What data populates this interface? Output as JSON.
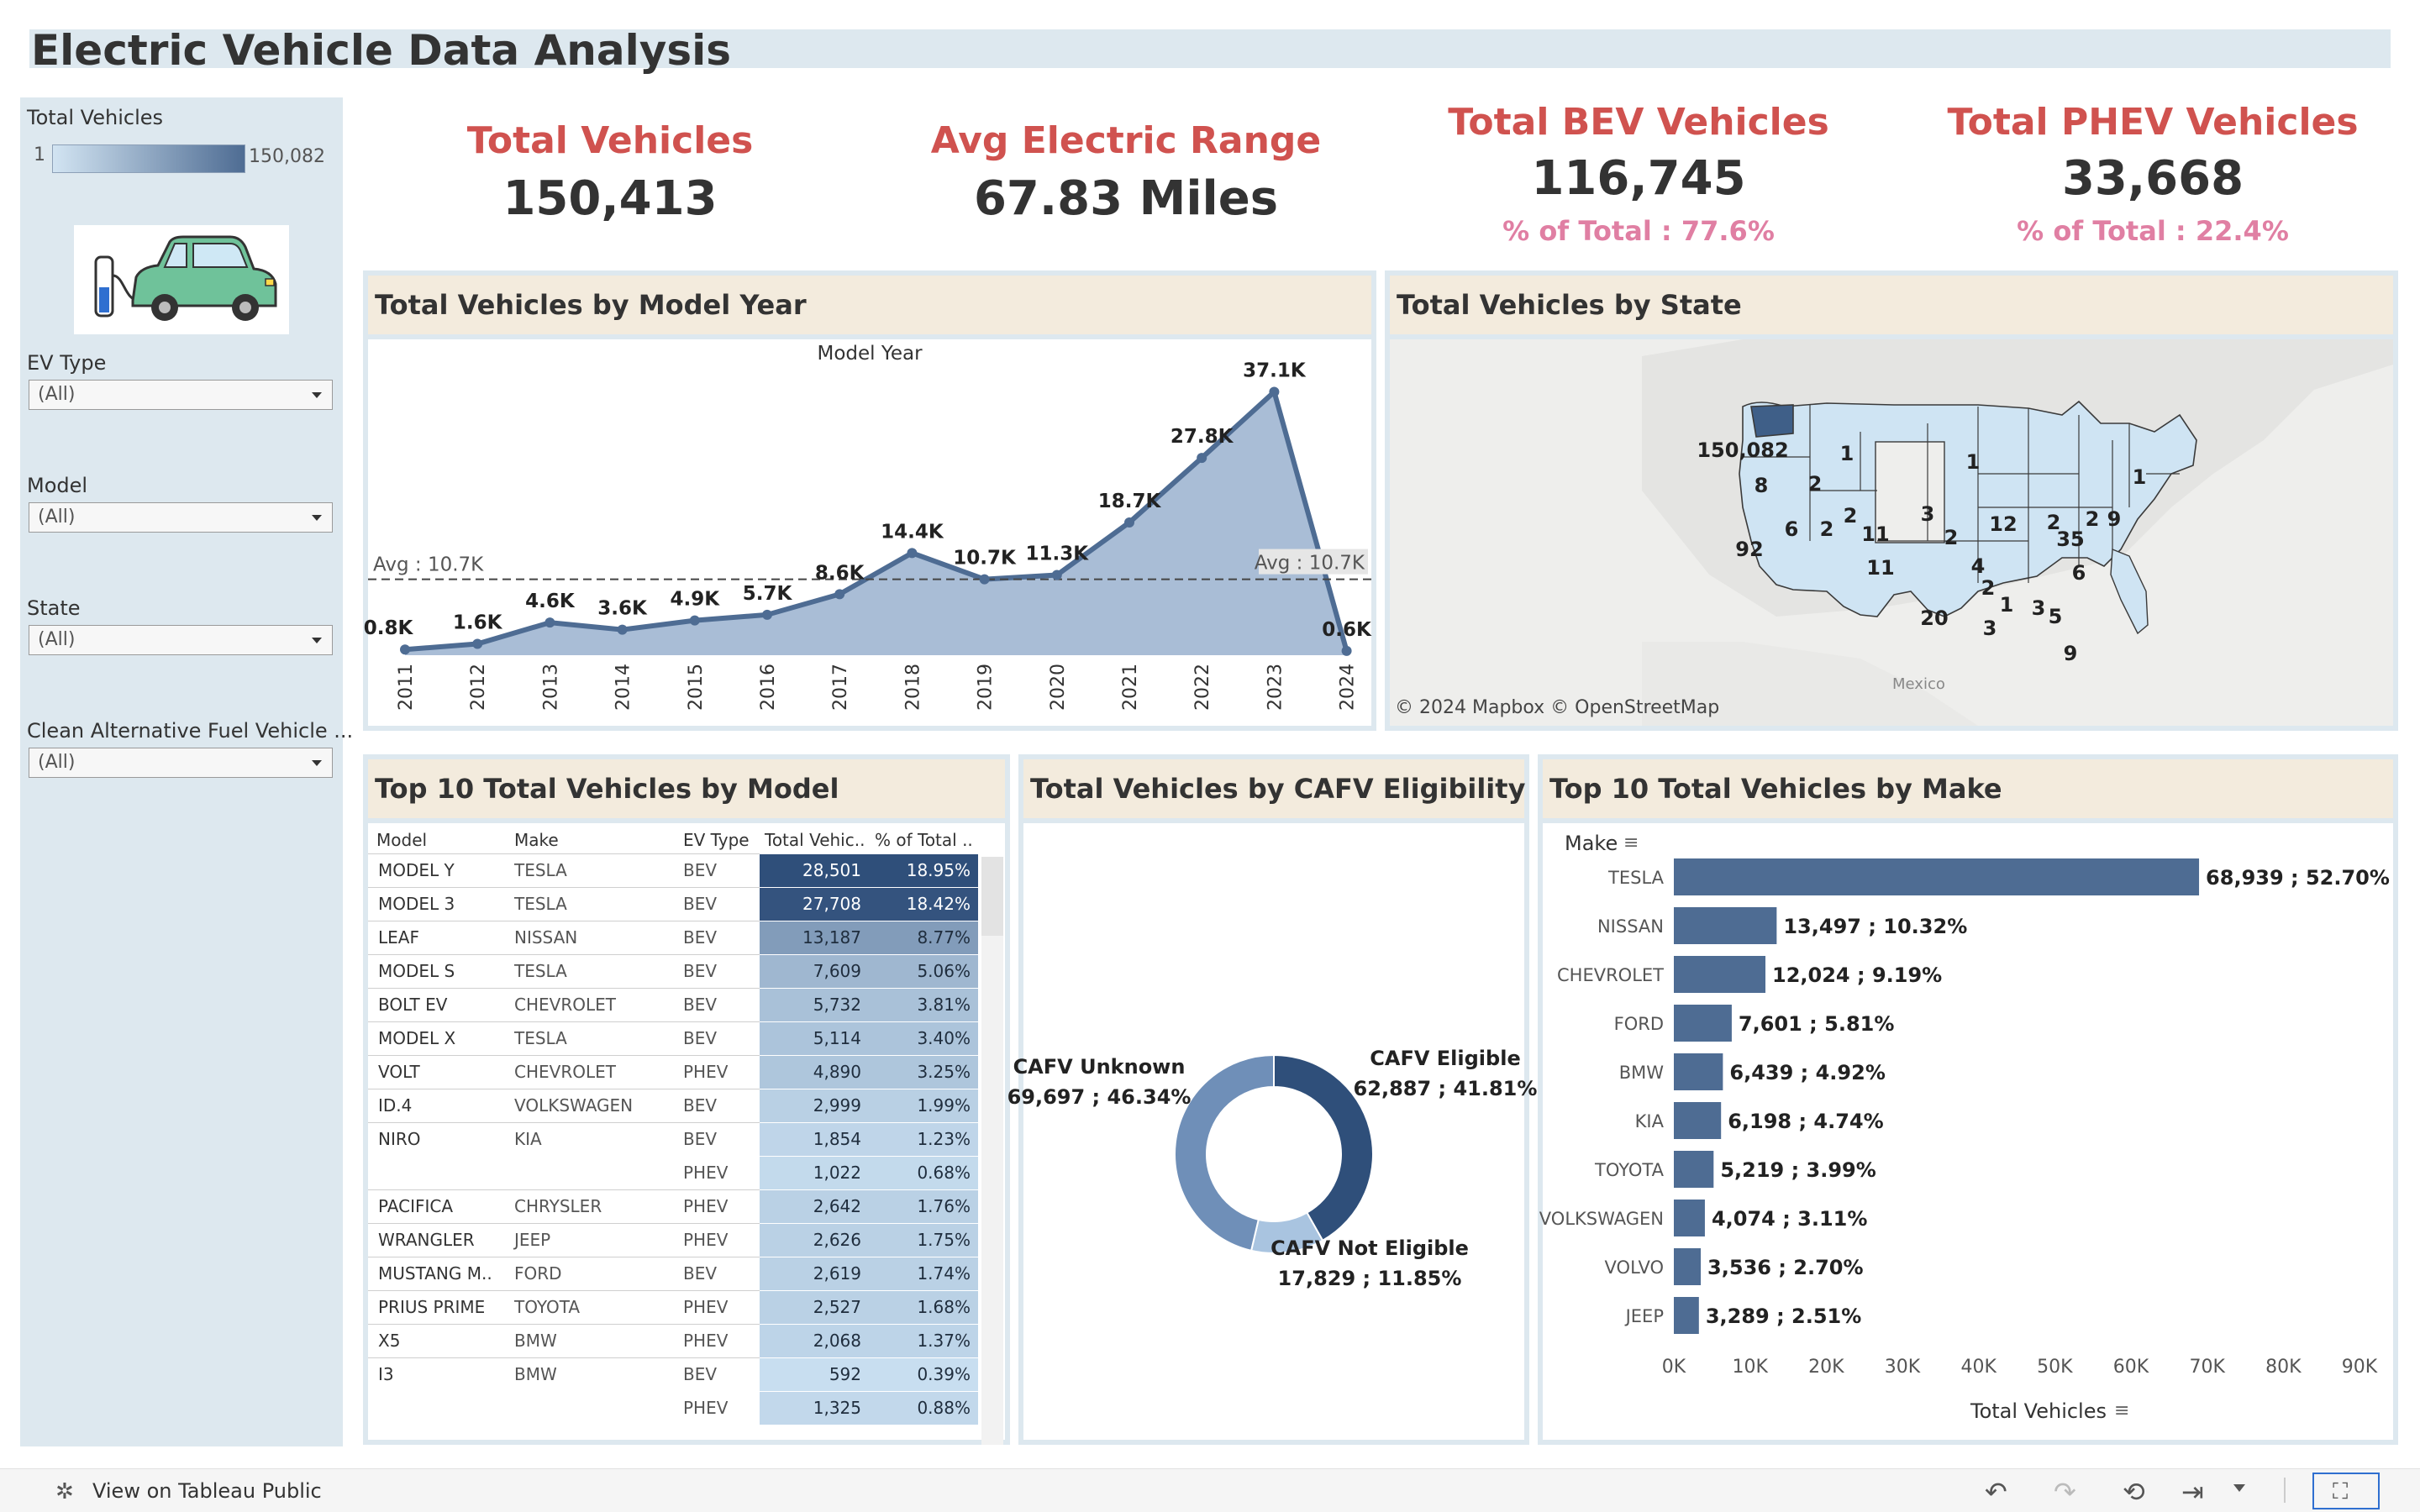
{
  "title": "Electric Vehicle Data Analysis",
  "sidebar": {
    "legend_title": "Total Vehicles",
    "legend_min": "1",
    "legend_max": "150,082",
    "filters": [
      {
        "label": "EV Type",
        "value": "(All)"
      },
      {
        "label": "Model",
        "value": "(All)"
      },
      {
        "label": "State",
        "value": "(All)"
      },
      {
        "label": "Clean Alternative Fuel Vehicle ...",
        "value": "(All)"
      }
    ]
  },
  "kpis": [
    {
      "title": "Total Vehicles",
      "value": "150,413",
      "sub": ""
    },
    {
      "title": "Avg Electric Range",
      "value": "67.83 Miles",
      "sub": ""
    },
    {
      "title": "Total BEV Vehicles",
      "value": "116,745",
      "sub": "% of Total : 77.6%"
    },
    {
      "title": "Total PHEV Vehicles",
      "value": "33,668",
      "sub": "% of Total : 22.4%"
    }
  ],
  "panels": {
    "model_year": "Total Vehicles by Model Year",
    "state": "Total Vehicles by State",
    "top_models": "Top 10 Total Vehicles by Model",
    "cafv": "Total Vehicles by CAFV Eligibility",
    "top_makes": "Top 10 Total Vehicles by Make"
  },
  "map": {
    "attribution": "© 2024 Mapbox  © OpenStreetMap",
    "mexico_label": "Mexico",
    "state_labels": [
      "150,082",
      "1",
      "8",
      "2",
      "2",
      "1",
      "6",
      "2",
      "11",
      "3",
      "2",
      "12",
      "2",
      "2",
      "9",
      "1",
      "92",
      "11",
      "35",
      "4",
      "6",
      "2",
      "1",
      "3",
      "5",
      "20",
      "3",
      "9"
    ]
  },
  "table": {
    "headers": [
      "Model",
      "Make",
      "EV Type",
      "Total Vehic..",
      "% of Total .."
    ],
    "rows": [
      {
        "model": "MODEL Y",
        "make": "TESLA",
        "type": "BEV",
        "total": "28,501",
        "pct": "18.95%",
        "shade": 1.0
      },
      {
        "model": "MODEL 3",
        "make": "TESLA",
        "type": "BEV",
        "total": "27,708",
        "pct": "18.42%",
        "shade": 0.97
      },
      {
        "model": "LEAF",
        "make": "NISSAN",
        "type": "BEV",
        "total": "13,187",
        "pct": "8.77%",
        "shade": 0.46
      },
      {
        "model": "MODEL S",
        "make": "TESLA",
        "type": "BEV",
        "total": "7,609",
        "pct": "5.06%",
        "shade": 0.27
      },
      {
        "model": "BOLT EV",
        "make": "CHEVROLET",
        "type": "BEV",
        "total": "5,732",
        "pct": "3.81%",
        "shade": 0.2
      },
      {
        "model": "MODEL X",
        "make": "TESLA",
        "type": "BEV",
        "total": "5,114",
        "pct": "3.40%",
        "shade": 0.18
      },
      {
        "model": "VOLT",
        "make": "CHEVROLET",
        "type": "PHEV",
        "total": "4,890",
        "pct": "3.25%",
        "shade": 0.17
      },
      {
        "model": "ID.4",
        "make": "VOLKSWAGEN",
        "type": "BEV",
        "total": "2,999",
        "pct": "1.99%",
        "shade": 0.1
      },
      {
        "model": "NIRO",
        "make": "KIA",
        "type": "BEV",
        "total": "1,854",
        "pct": "1.23%",
        "shade": 0.06
      },
      {
        "model": "",
        "make": "",
        "type": "PHEV",
        "total": "1,022",
        "pct": "0.68%",
        "shade": 0.03
      },
      {
        "model": "PACIFICA",
        "make": "CHRYSLER",
        "type": "PHEV",
        "total": "2,642",
        "pct": "1.76%",
        "shade": 0.09
      },
      {
        "model": "WRANGLER",
        "make": "JEEP",
        "type": "PHEV",
        "total": "2,626",
        "pct": "1.75%",
        "shade": 0.09
      },
      {
        "model": "MUSTANG M..",
        "make": "FORD",
        "type": "BEV",
        "total": "2,619",
        "pct": "1.74%",
        "shade": 0.09
      },
      {
        "model": "PRIUS PRIME",
        "make": "TOYOTA",
        "type": "PHEV",
        "total": "2,527",
        "pct": "1.68%",
        "shade": 0.09
      },
      {
        "model": "X5",
        "make": "BMW",
        "type": "PHEV",
        "total": "2,068",
        "pct": "1.37%",
        "shade": 0.07
      },
      {
        "model": "I3",
        "make": "BMW",
        "type": "BEV",
        "total": "592",
        "pct": "0.39%",
        "shade": 0.0
      },
      {
        "model": "",
        "make": "",
        "type": "PHEV",
        "total": "1,325",
        "pct": "0.88%",
        "shade": 0.04
      }
    ]
  },
  "footer": {
    "link": "View on Tableau Public"
  },
  "chart_data": [
    {
      "type": "area",
      "title": "Total Vehicles by Model Year",
      "xlabel": "Model Year",
      "x": [
        "2011",
        "2012",
        "2013",
        "2014",
        "2015",
        "2016",
        "2017",
        "2018",
        "2019",
        "2020",
        "2021",
        "2022",
        "2023",
        "2024"
      ],
      "values": [
        0.8,
        1.6,
        4.6,
        3.6,
        4.9,
        5.7,
        8.6,
        14.4,
        10.7,
        11.3,
        18.7,
        27.8,
        37.1,
        0.6
      ],
      "value_labels": [
        "0.8K",
        "1.6K",
        "4.6K",
        "3.6K",
        "4.9K",
        "5.7K",
        "8.6K",
        "14.4K",
        "10.7K",
        "11.3K",
        "18.7K",
        "27.8K",
        "37.1K",
        "0.6K"
      ],
      "avg": 10.7,
      "avg_label": "Avg : 10.7K",
      "ylim": [
        0,
        40
      ],
      "colors": {
        "fill": "#a9bdd6",
        "line": "#4e6c93"
      }
    },
    {
      "type": "pie",
      "title": "Total Vehicles by CAFV Eligibility",
      "slices": [
        {
          "name": "CAFV Eligible",
          "value": 62887,
          "label": "62,887 ; 41.81%",
          "color": "#2f4f7a"
        },
        {
          "name": "CAFV Not Eligible",
          "value": 17829,
          "label": "17,829 ; 11.85%",
          "color": "#a9c4e0"
        },
        {
          "name": "CAFV Unknown",
          "value": 69697,
          "label": "69,697 ; 46.34%",
          "color": "#6f8fb8"
        }
      ]
    },
    {
      "type": "bar",
      "title": "Top 10 Total Vehicles by Make",
      "ylabel": "Make",
      "xlabel": "Total Vehicles",
      "categories": [
        "TESLA",
        "NISSAN",
        "CHEVROLET",
        "FORD",
        "BMW",
        "KIA",
        "TOYOTA",
        "VOLKSWAGEN",
        "VOLVO",
        "JEEP"
      ],
      "values": [
        68939,
        13497,
        12024,
        7601,
        6439,
        6198,
        5219,
        4074,
        3536,
        3289
      ],
      "labels": [
        "68,939 ; 52.70%",
        "13,497 ; 10.32%",
        "12,024 ; 9.19%",
        "7,601 ; 5.81%",
        "6,439 ; 4.92%",
        "6,198 ; 4.74%",
        "5,219 ; 3.99%",
        "4,074 ; 3.11%",
        "3,536 ; 2.70%",
        "3,289 ; 2.51%"
      ],
      "xticks": [
        "0K",
        "10K",
        "20K",
        "30K",
        "40K",
        "50K",
        "60K",
        "70K",
        "80K",
        "90K"
      ],
      "xlim": [
        0,
        90000
      ],
      "color": "#4e6c93"
    }
  ]
}
